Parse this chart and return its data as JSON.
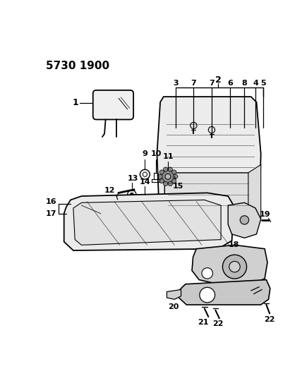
{
  "bg_color": "#ffffff",
  "title": "5730 1900",
  "seat_back_color": "#e8e8e8",
  "seat_cushion_color": "#e8e8e8",
  "track_color": "#d8d8d8",
  "line_color": "#000000",
  "hardware_color": "#c0c0c0"
}
